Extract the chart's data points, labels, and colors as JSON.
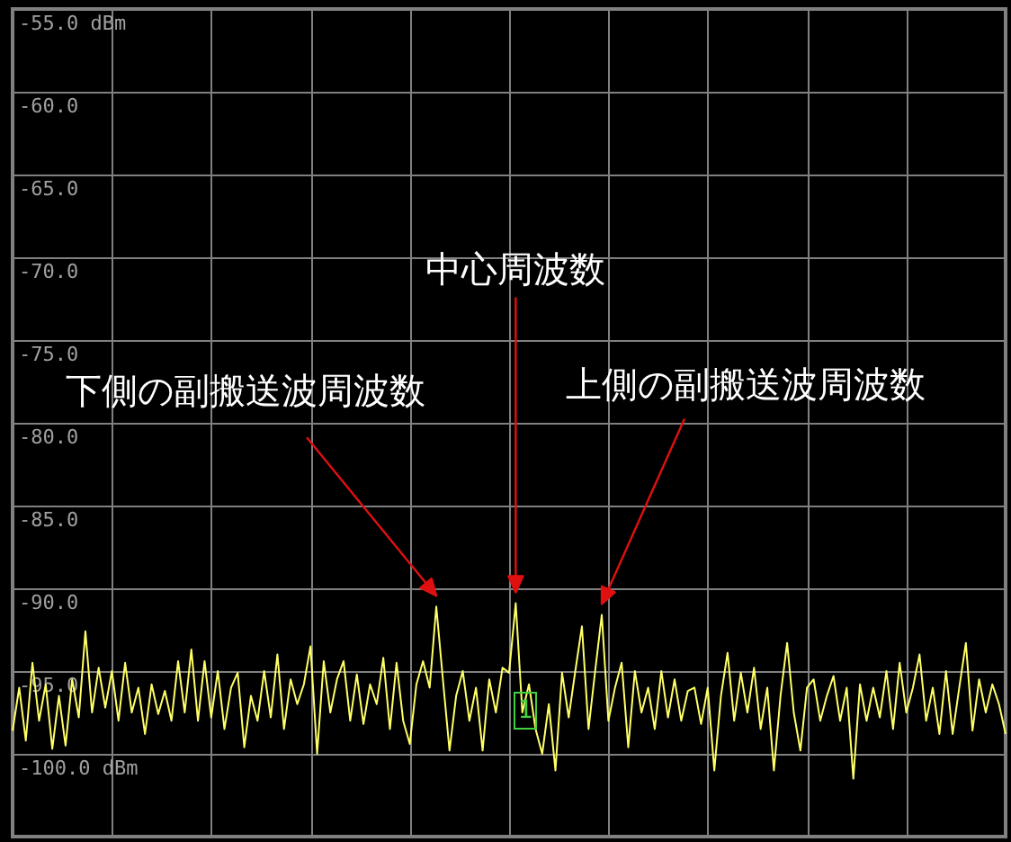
{
  "chart_data": {
    "type": "line",
    "color": "#ffff66",
    "categories": [
      null,
      null,
      null,
      null,
      null,
      null,
      null,
      null,
      null,
      null,
      null,
      null,
      null,
      null,
      null,
      null,
      null,
      null,
      null,
      null,
      null,
      null,
      null,
      null,
      null,
      null,
      null,
      null,
      null,
      null,
      null,
      null,
      null,
      null,
      null,
      null,
      null,
      null,
      null,
      null,
      null,
      null,
      null,
      null,
      null,
      null,
      null,
      null,
      null,
      null,
      null,
      null,
      null,
      null,
      null,
      null,
      null,
      null,
      null,
      null,
      null,
      null,
      null,
      null,
      null,
      null,
      null,
      null,
      null,
      null,
      null,
      null,
      null,
      null,
      null,
      null,
      null,
      null,
      null,
      null,
      null,
      null,
      null,
      null,
      null,
      null,
      null,
      null,
      null,
      null,
      null,
      null,
      null,
      null,
      null,
      null,
      null,
      null,
      null,
      null,
      null,
      null,
      null,
      null,
      null,
      null,
      null,
      null,
      null,
      null,
      null,
      null,
      null,
      null,
      null,
      null,
      null,
      null,
      null,
      null,
      null,
      null,
      null,
      null,
      null,
      null,
      null,
      null,
      null,
      null,
      null,
      null,
      null,
      null,
      null,
      null,
      null,
      null,
      null,
      null,
      null,
      null,
      null,
      null,
      null,
      null,
      null,
      null,
      null,
      null,
      null
    ],
    "values": [
      -98.6,
      -96.0,
      -99.2,
      -94.5,
      -98.0,
      -95.8,
      -99.7,
      -96.5,
      -99.5,
      -95.5,
      -97.8,
      -92.6,
      -97.5,
      -94.8,
      -97.2,
      -95.0,
      -98.0,
      -94.5,
      -97.5,
      -96.0,
      -98.8,
      -95.8,
      -97.6,
      -96.2,
      -98.0,
      -94.4,
      -97.5,
      -93.7,
      -98.0,
      -94.4,
      -97.8,
      -95.0,
      -98.5,
      -96.0,
      -95.1,
      -99.6,
      -96.5,
      -98.0,
      -95.0,
      -97.8,
      -94.0,
      -98.5,
      -95.5,
      -97.0,
      -95.8,
      -93.5,
      -100.0,
      -94.4,
      -97.5,
      -95.5,
      -94.4,
      -98.0,
      -95.2,
      -98.2,
      -95.8,
      -97.0,
      -94.2,
      -98.5,
      -94.5,
      -98.0,
      -99.4,
      -95.8,
      -94.4,
      -96.0,
      -91.1,
      -95.5,
      -99.8,
      -96.5,
      -95.0,
      -98.0,
      -96.0,
      -99.8,
      -95.5,
      -97.5,
      -94.8,
      -95.1,
      -90.9,
      -97.5,
      -95.8,
      -98.5,
      -100.0,
      -97.0,
      -101.0,
      -95.1,
      -97.8,
      -95.0,
      -92.3,
      -98.5,
      -95.0,
      -91.6,
      -98.0,
      -96.0,
      -94.5,
      -99.6,
      -95.0,
      -97.5,
      -96.0,
      -98.5,
      -95.0,
      -97.8,
      -95.5,
      -98.0,
      -96.2,
      -96.0,
      -98.2,
      -96.0,
      -101.0,
      -96.5,
      -93.9,
      -98.0,
      -95.1,
      -97.5,
      -94.8,
      -98.5,
      -96.0,
      -101.0,
      -96.5,
      -93.3,
      -97.5,
      -99.8,
      -96.0,
      -95.5,
      -98.0,
      -96.5,
      -95.3,
      -98.0,
      -96.0,
      -101.5,
      -95.8,
      -98.0,
      -96.0,
      -97.8,
      -95.0,
      -98.5,
      -94.5,
      -97.5,
      -96.0,
      -94.0,
      -98.0,
      -96.0,
      -98.8,
      -95.0,
      -98.8,
      -96.0,
      -93.3,
      -98.6,
      -95.5,
      -97.5,
      -95.8,
      -97.0,
      -98.8
    ],
    "ylim": [
      -105,
      -55
    ],
    "yticks": [
      {
        "value": -55,
        "label": "-55.0 dBm"
      },
      {
        "value": -60,
        "label": "-60.0"
      },
      {
        "value": -65,
        "label": "-65.0"
      },
      {
        "value": -70,
        "label": "-70.0"
      },
      {
        "value": -75,
        "label": "-75.0"
      },
      {
        "value": -80,
        "label": "-80.0"
      },
      {
        "value": -85,
        "label": "-85.0"
      },
      {
        "value": -90,
        "label": "-90.0"
      },
      {
        "value": -95,
        "label": "-95.0"
      },
      {
        "value": -100,
        "label": "-100.0 dBm"
      }
    ],
    "grid": true,
    "annotations": [
      "下側の副搬送波周波数",
      "中心周波数",
      "上側の副搬送波周波数",
      "1"
    ]
  }
}
